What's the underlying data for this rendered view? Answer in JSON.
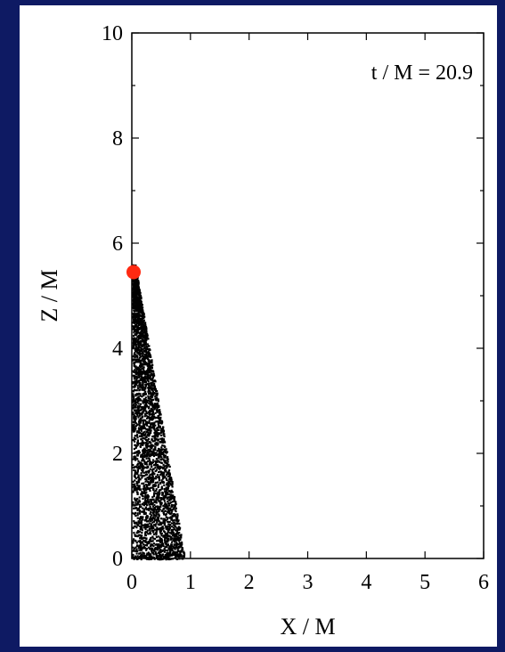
{
  "chart_data": {
    "type": "scatter",
    "xlabel": "X / M",
    "ylabel": "Z / M",
    "xlim": [
      0,
      6
    ],
    "ylim": [
      0,
      10
    ],
    "xticks": [
      0,
      1,
      2,
      3,
      4,
      5,
      6
    ],
    "yticks": [
      0,
      2,
      4,
      6,
      8,
      10
    ],
    "annotation": "t / M = 20.9",
    "grid": false,
    "series": [
      {
        "kind": "particles",
        "color": "#000000",
        "region": {
          "z_top": 5.6,
          "x_at_base": 0.85,
          "x_max": 0.88
        }
      },
      {
        "kind": "marker",
        "color": "#ff2a12",
        "points": [
          {
            "x": 0.0,
            "y": 5.45
          }
        ]
      }
    ]
  }
}
